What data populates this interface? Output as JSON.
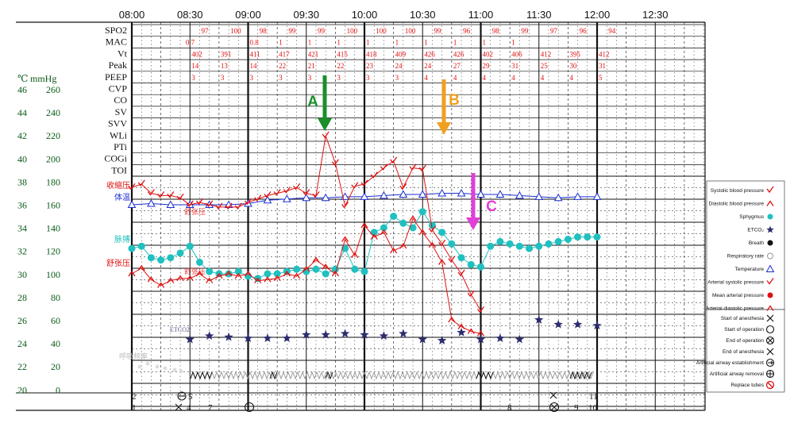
{
  "header": {
    "times": [
      "08:00",
      "08:30",
      "09:00",
      "09:30",
      "10:00",
      "10:30",
      "11:00",
      "11:30",
      "12:00",
      "12:30"
    ]
  },
  "parameter_rows": [
    "SPO2",
    "MAC",
    "Vt",
    "Peak",
    "PEEP",
    "CVP",
    "CO",
    "SV",
    "SVV",
    "WLi",
    "PTi",
    "COGi",
    "TOI"
  ],
  "axis": {
    "temp_unit": "℃",
    "pressure_unit": "mmHg",
    "temperature_ticks": [
      "46",
      "44",
      "42",
      "40",
      "38",
      "36",
      "34",
      "32",
      "30",
      "28",
      "26",
      "24",
      "22",
      "20"
    ],
    "pressure_ticks": [
      "260",
      "240",
      "220",
      "200",
      "180",
      "160",
      "140",
      "120",
      "100",
      "80",
      "60",
      "40",
      "20",
      "0"
    ]
  },
  "row_values": {
    "SPO2": [
      "97",
      "100",
      "98",
      "99",
      "99",
      "100",
      "100",
      "100",
      "99",
      "96",
      "98",
      "99",
      "97",
      "96",
      "94"
    ],
    "MAC": [
      "0.7",
      "0.8",
      "1",
      "1",
      "1",
      "1",
      "1",
      "1",
      "1",
      "1",
      "1"
    ],
    "Vt": [
      "402",
      "391",
      "411",
      "417",
      "421",
      "415",
      "418",
      "409",
      "426",
      "426",
      "402",
      "406",
      "412",
      "395",
      "412"
    ],
    "Peak": [
      "14",
      "13",
      "14",
      "22",
      "21",
      "22",
      "23",
      "24",
      "24",
      "27",
      "29",
      "31",
      "25",
      "30",
      "31"
    ],
    "PEEP": [
      "3",
      "3",
      "3",
      "3",
      "3",
      "3",
      "3",
      "3",
      "4",
      "4",
      "4",
      "4",
      "4",
      "4",
      "5"
    ]
  },
  "series_labels": {
    "systolic": "收缩压",
    "temp": "体温",
    "diastolic_partial": "舒张压",
    "pulse": "脉搏",
    "diastolic": "舒张压",
    "diastolic_partial2": "舒张压",
    "etco2": "ETCO2",
    "resp": "呼吸频率"
  },
  "arrows": {
    "A": {
      "label": "A",
      "color": "#1a8f2a"
    },
    "B": {
      "label": "B",
      "color": "#f0a020"
    },
    "C": {
      "label": "C",
      "color": "#e23fd6"
    }
  },
  "legend": [
    {
      "label": "Systolic blood pressure",
      "icon": "red-check"
    },
    {
      "label": "Diastolic blood pressure",
      "icon": "red-caret"
    },
    {
      "label": "Sphygmus",
      "icon": "cyan-dot"
    },
    {
      "label": "ETCO₂",
      "icon": "navy-star"
    },
    {
      "label": "Breath",
      "icon": "black-dot"
    },
    {
      "label": "Respiratory rate",
      "icon": "hollow-circle"
    },
    {
      "label": "Temperature",
      "icon": "blue-triangle"
    },
    {
      "label": "Arterial systolic pressure",
      "icon": "red-check"
    },
    {
      "label": "Mean arterial pressure",
      "icon": "red-dot"
    },
    {
      "label": "Arterial diastolic pressure",
      "icon": "red-caret"
    },
    {
      "label": "Start of anesthesia",
      "icon": "x-mark"
    },
    {
      "label": "Start of operation",
      "icon": "open-circle"
    },
    {
      "label": "End of operation",
      "icon": "circle-x"
    },
    {
      "label": "End of anesthesia",
      "icon": "x-mark"
    },
    {
      "label": "Artificial airway establishment",
      "icon": "circle-arrow"
    },
    {
      "label": "Artificial airway removal",
      "icon": "circle-cross"
    },
    {
      "label": "Replace tubes",
      "icon": "red-slash-circle"
    }
  ],
  "events": {
    "row1": [
      "2",
      "5",
      "11"
    ],
    "row2": [
      "1",
      "4",
      "7",
      "8",
      "9",
      "10"
    ]
  },
  "colors": {
    "blood_pressure": "#e01010",
    "pulse": "#20c0c0",
    "temperature": "#1a2fd0",
    "etco2": "#2c2c6e",
    "grid": "#111111"
  },
  "chart_data": {
    "type": "line",
    "xlabel": "",
    "time_range": [
      "08:00",
      "12:45"
    ],
    "y_axes": {
      "pressure_mmHg": [
        0,
        260
      ],
      "temperature_C": [
        20,
        46
      ]
    },
    "series": [
      {
        "name": "收缩压",
        "unit": "mmHg",
        "x": [
          "08:00",
          "08:05",
          "08:10",
          "08:15",
          "08:20",
          "08:25",
          "08:30",
          "08:35",
          "08:40",
          "08:45",
          "08:50",
          "08:55",
          "09:00",
          "09:05",
          "09:10",
          "09:15",
          "09:20",
          "09:25",
          "09:30",
          "09:35",
          "09:40",
          "09:45",
          "09:50",
          "09:55",
          "10:00",
          "10:05",
          "10:10",
          "10:15",
          "10:20",
          "10:25",
          "10:30",
          "10:35",
          "10:40",
          "10:45",
          "10:50",
          "10:55",
          "11:00"
        ],
        "values": [
          175,
          178,
          170,
          168,
          168,
          166,
          160,
          162,
          160,
          158,
          158,
          158,
          162,
          165,
          168,
          170,
          172,
          175,
          170,
          168,
          220,
          196,
          159,
          176,
          178,
          185,
          192,
          198,
          175,
          192,
          191,
          138,
          126,
          112,
          100,
          82,
          68
        ]
      },
      {
        "name": "舒张压",
        "unit": "mmHg",
        "x": [
          "08:00",
          "08:05",
          "08:10",
          "08:15",
          "08:20",
          "08:25",
          "08:30",
          "08:35",
          "08:40",
          "08:45",
          "08:50",
          "08:55",
          "09:00",
          "09:05",
          "09:10",
          "09:15",
          "09:20",
          "09:25",
          "09:30",
          "09:35",
          "09:40",
          "09:45",
          "09:50",
          "09:55",
          "10:00",
          "10:05",
          "10:10",
          "10:15",
          "10:20",
          "10:25",
          "10:30",
          "10:35",
          "10:40",
          "10:45",
          "10:50",
          "10:55",
          "11:00"
        ],
        "values": [
          100,
          105,
          95,
          90,
          94,
          96,
          96,
          100,
          94,
          98,
          100,
          98,
          100,
          94,
          95,
          96,
          100,
          98,
          104,
          112,
          106,
          100,
          130,
          116,
          142,
          132,
          136,
          120,
          124,
          148,
          136,
          125,
          110,
          60,
          54,
          50,
          48
        ]
      },
      {
        "name": "脉搏",
        "unit": "bpm",
        "x": [
          "08:00",
          "08:05",
          "08:10",
          "08:15",
          "08:20",
          "08:25",
          "08:30",
          "08:35",
          "08:40",
          "08:45",
          "08:50",
          "08:55",
          "09:00",
          "09:05",
          "09:10",
          "09:15",
          "09:20",
          "09:25",
          "09:30",
          "09:35",
          "09:40",
          "09:45",
          "09:50",
          "09:55",
          "10:00",
          "10:05",
          "10:10",
          "10:15",
          "10:20",
          "10:25",
          "10:30",
          "10:35",
          "10:40",
          "10:45",
          "10:50",
          "10:55",
          "11:00",
          "11:05",
          "11:10",
          "11:15",
          "11:20",
          "11:25",
          "11:30",
          "11:35",
          "11:40",
          "11:45",
          "11:50",
          "11:55",
          "12:00"
        ],
        "values": [
          122,
          124,
          114,
          112,
          114,
          118,
          124,
          110,
          102,
          100,
          100,
          102,
          98,
          96,
          100,
          100,
          102,
          104,
          102,
          104,
          100,
          104,
          122,
          104,
          102,
          136,
          140,
          150,
          144,
          140,
          154,
          142,
          136,
          126,
          114,
          108,
          106,
          124,
          128,
          126,
          124,
          122,
          124,
          126,
          128,
          130,
          132,
          132,
          132
        ]
      },
      {
        "name": "体温",
        "unit": "℃",
        "x": [
          "08:00",
          "08:10",
          "08:20",
          "08:30",
          "08:40",
          "08:50",
          "09:00",
          "09:10",
          "09:20",
          "09:30",
          "09:40",
          "09:50",
          "10:00",
          "10:10",
          "10:20",
          "10:30",
          "10:40",
          "10:50",
          "11:00",
          "11:10",
          "11:20",
          "11:30",
          "11:40",
          "11:50",
          "12:00"
        ],
        "values": [
          36.0,
          36.1,
          36.0,
          36.0,
          36.0,
          36.0,
          36.1,
          36.4,
          36.5,
          36.6,
          36.6,
          36.7,
          36.7,
          36.8,
          36.9,
          36.9,
          37.0,
          37.0,
          36.9,
          36.9,
          36.8,
          36.7,
          36.6,
          36.7,
          36.7
        ]
      },
      {
        "name": "ETCO2",
        "unit": "mmHg",
        "x": [
          "08:30",
          "08:40",
          "08:50",
          "09:00",
          "09:10",
          "09:20",
          "09:30",
          "09:40",
          "09:50",
          "10:00",
          "10:10",
          "10:20",
          "10:30",
          "10:40",
          "10:50",
          "11:00",
          "11:10",
          "11:20",
          "11:30",
          "11:40",
          "11:50",
          "12:00"
        ],
        "values": [
          43,
          46,
          45,
          44,
          44,
          44,
          47,
          47,
          48,
          47,
          46,
          48,
          43,
          42,
          49,
          43,
          44,
          43,
          60,
          56,
          56,
          55
        ]
      }
    ]
  }
}
